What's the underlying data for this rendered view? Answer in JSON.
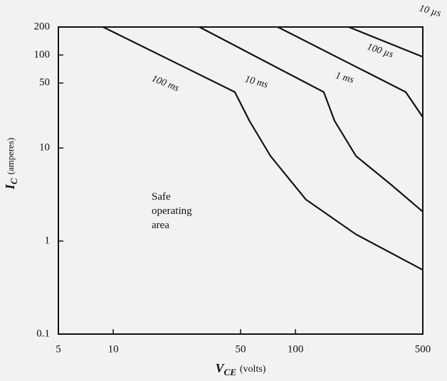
{
  "chart_data": {
    "type": "line",
    "x_label": {
      "symbol": "V",
      "subscript": "CE",
      "unit": "(volts)"
    },
    "y_label": {
      "symbol": "I",
      "subscript": "C",
      "unit": "(amperes)"
    },
    "annotation": [
      "Safe",
      "operating",
      "area"
    ],
    "xscale": "log",
    "yscale": "log",
    "xlim": [
      5,
      500
    ],
    "ylim": [
      0.1,
      200
    ],
    "xticks": [
      5,
      10,
      50,
      100,
      500
    ],
    "yticks": [
      0.1,
      1,
      10,
      50,
      100,
      200
    ],
    "color": "#111111",
    "series": [
      {
        "name": "100 ms",
        "x": [
          8.8,
          46.5,
          55.9,
          73,
          114,
          215,
          500
        ],
        "values": [
          200,
          40,
          19.6,
          8.2,
          2.8,
          1.18,
          0.49
        ]
      },
      {
        "name": "10 ms",
        "x": [
          29.7,
          143,
          164,
          215,
          337,
          500
        ],
        "values": [
          200,
          40,
          19.6,
          8.2,
          4.0,
          2.07
        ]
      },
      {
        "name": "1 ms",
        "x": [
          80,
          403,
          500
        ],
        "values": [
          200,
          40,
          21.5
        ]
      },
      {
        "name": "100 µs",
        "x": [
          196,
          500
        ],
        "values": [
          200,
          95.5
        ]
      },
      {
        "name": "10 µs",
        "x": [],
        "values": []
      }
    ]
  }
}
